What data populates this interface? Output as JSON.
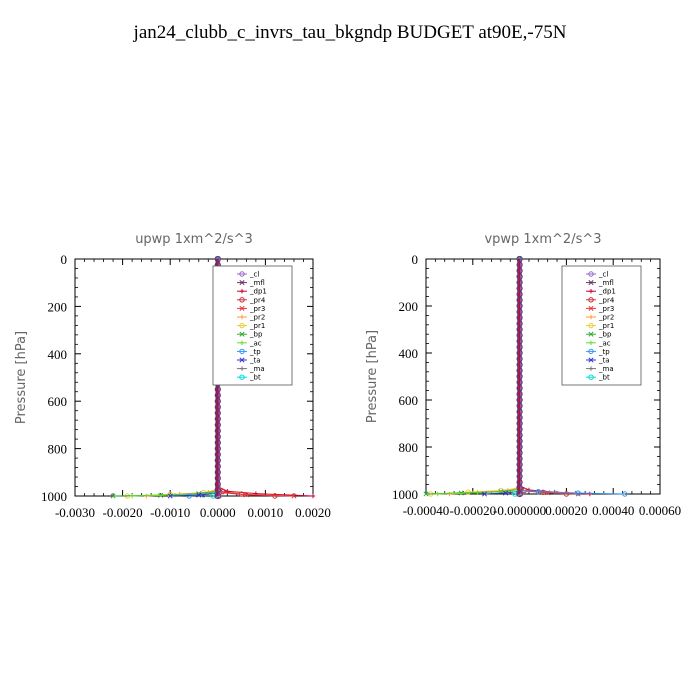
{
  "title": "jan24_clubb_c_invrs_tau_bkgndp  BUDGET at90E,-75N",
  "legend_entries": [
    "_cl",
    "_mfl",
    "_dp1",
    "_pr4",
    "_pr3",
    "_pr2",
    "_pr1",
    "_bp",
    "_ac",
    "_tp",
    "_ta",
    "_ma",
    "_bt"
  ],
  "series_colors": [
    "#9966cc",
    "#663366",
    "#cc0033",
    "#cc3333",
    "#ee3333",
    "#ff9933",
    "#eecc33",
    "#33aa33",
    "#66dd33",
    "#3399ee",
    "#3333cc",
    "#777777",
    "#00dddd"
  ],
  "chart_data": [
    {
      "type": "line",
      "title": "upwp   1xm^2/s^3",
      "ylabel": "Pressure  [hPa]",
      "xlim": [
        -0.003,
        0.002
      ],
      "ylim": [
        1000,
        0
      ],
      "xticks": [
        "-0.0030",
        "-0.0020",
        "-0.0010",
        "0.0000",
        "0.0010",
        "0.0020"
      ],
      "yticks": [
        "0",
        "200",
        "400",
        "600",
        "800",
        "1000"
      ],
      "grid": false,
      "legend": "top-right",
      "series": [
        {
          "values": [
            [
              3e-05,
              1000
            ],
            [
              3e-05,
              980
            ],
            [
              0.0,
              900
            ],
            [
              0.0,
              600
            ],
            [
              0.0,
              300
            ],
            [
              0.0,
              0
            ]
          ]
        },
        {
          "values": [
            [
              -1e-05,
              1000
            ],
            [
              -1e-05,
              975
            ],
            [
              0.0,
              900
            ],
            [
              0.0,
              500
            ],
            [
              0.0,
              0
            ]
          ]
        },
        {
          "values": [
            [
              0.002,
              1000
            ],
            [
              0.0008,
              990
            ],
            [
              0.0002,
              980
            ],
            [
              0.0,
              960
            ],
            [
              0.0,
              0
            ]
          ]
        },
        {
          "values": [
            [
              0.0012,
              1000
            ],
            [
              0.0005,
              992
            ],
            [
              0.0001,
              982
            ],
            [
              0.0,
              960
            ],
            [
              0.0,
              0
            ]
          ]
        },
        {
          "values": [
            [
              0.0016,
              1000
            ],
            [
              0.0006,
              995
            ],
            [
              0.0,
              985
            ],
            [
              0.0,
              0
            ]
          ]
        },
        {
          "values": [
            [
              -0.0015,
              1000
            ],
            [
              -0.0008,
              992
            ],
            [
              -0.0002,
              984
            ],
            [
              0.0,
              970
            ],
            [
              0.0,
              0
            ]
          ]
        },
        {
          "values": [
            [
              -0.0019,
              1000
            ],
            [
              -0.001,
              993
            ],
            [
              -0.0003,
              986
            ],
            [
              0.0,
              975
            ],
            [
              0.0,
              0
            ]
          ]
        },
        {
          "values": [
            [
              -0.0022,
              1000
            ],
            [
              -0.0012,
              997
            ],
            [
              -0.0004,
              990
            ],
            [
              0.0,
              980
            ],
            [
              0.0,
              0
            ]
          ]
        },
        {
          "values": [
            [
              -0.0018,
              1000
            ],
            [
              -0.0009,
              996
            ],
            [
              -0.0002,
              990
            ],
            [
              0.0,
              980
            ],
            [
              0.0,
              0
            ]
          ]
        },
        {
          "values": [
            [
              -0.0006,
              1000
            ],
            [
              -0.0003,
              995
            ],
            [
              0.0,
              985
            ],
            [
              0.0,
              0
            ]
          ]
        },
        {
          "values": [
            [
              -0.001,
              1000
            ],
            [
              -0.0004,
              996
            ],
            [
              0.0,
              988
            ],
            [
              0.0,
              0
            ]
          ]
        },
        {
          "values": [
            [
              0.0,
              1000
            ],
            [
              0.0,
              0
            ]
          ]
        },
        {
          "values": [
            [
              -0.0001,
              1000
            ],
            [
              0.0,
              990
            ],
            [
              0.0,
              0
            ]
          ]
        }
      ]
    },
    {
      "type": "line",
      "title": "vpwp   1xm^2/s^3",
      "ylabel": "Pressure  [hPa]",
      "xlim": [
        -0.0004,
        0.0006
      ],
      "ylim": [
        1000,
        0
      ],
      "xticks": [
        "-0.00040",
        "-0.00020",
        "-0.000000",
        "0.00020",
        "0.00040",
        "0.00060"
      ],
      "yticks": [
        "0",
        "200",
        "400",
        "600",
        "800",
        "1000"
      ],
      "grid": false,
      "legend": "top-right",
      "series": [
        {
          "values": [
            [
              5e-06,
              1000
            ],
            [
              5e-06,
              980
            ],
            [
              0.0,
              900
            ],
            [
              0.0,
              600
            ],
            [
              0.0,
              300
            ],
            [
              0.0,
              0
            ]
          ]
        },
        {
          "values": [
            [
              -3e-06,
              1000
            ],
            [
              -3e-06,
              975
            ],
            [
              0.0,
              900
            ],
            [
              0.0,
              500
            ],
            [
              0.0,
              0
            ]
          ]
        },
        {
          "values": [
            [
              0.0003,
              1000
            ],
            [
              0.00015,
              992
            ],
            [
              4e-05,
              983
            ],
            [
              0.0,
              965
            ],
            [
              0.0,
              0
            ]
          ]
        },
        {
          "values": [
            [
              0.0002,
              1000
            ],
            [
              0.0001,
              993
            ],
            [
              2e-05,
              985
            ],
            [
              0.0,
              965
            ],
            [
              0.0,
              0
            ]
          ]
        },
        {
          "values": [
            [
              0.00025,
              1000
            ],
            [
              0.00012,
              995
            ],
            [
              0.0,
              985
            ],
            [
              0.0,
              0
            ]
          ]
        },
        {
          "values": [
            [
              -0.0003,
              1000
            ],
            [
              -0.00018,
              993
            ],
            [
              -5e-05,
              985
            ],
            [
              0.0,
              970
            ],
            [
              0.0,
              0
            ]
          ]
        },
        {
          "values": [
            [
              -0.00038,
              1000
            ],
            [
              -0.00022,
              992
            ],
            [
              -8e-05,
              985
            ],
            [
              0.0,
              975
            ],
            [
              0.0,
              0
            ]
          ]
        },
        {
          "values": [
            [
              -0.0004,
              1000
            ],
            [
              -0.00025,
              996
            ],
            [
              -8e-05,
              990
            ],
            [
              0.0,
              980
            ],
            [
              0.0,
              0
            ]
          ]
        },
        {
          "values": [
            [
              -0.00035,
              1000
            ],
            [
              -0.00018,
              995
            ],
            [
              -5e-05,
              990
            ],
            [
              0.0,
              980
            ],
            [
              0.0,
              0
            ]
          ]
        },
        {
          "values": [
            [
              0.00045,
              1000
            ],
            [
              0.00025,
              996
            ],
            [
              8e-05,
              990
            ],
            [
              0.0,
              982
            ],
            [
              0.0,
              0
            ]
          ]
        },
        {
          "values": [
            [
              -0.00015,
              1000
            ],
            [
              -6e-05,
              996
            ],
            [
              0.0,
              988
            ],
            [
              0.0,
              0
            ]
          ]
        },
        {
          "values": [
            [
              0.0,
              1000
            ],
            [
              0.0,
              0
            ]
          ]
        },
        {
          "values": [
            [
              -2e-05,
              1000
            ],
            [
              0.0,
              990
            ],
            [
              0.0,
              0
            ]
          ]
        }
      ]
    }
  ]
}
